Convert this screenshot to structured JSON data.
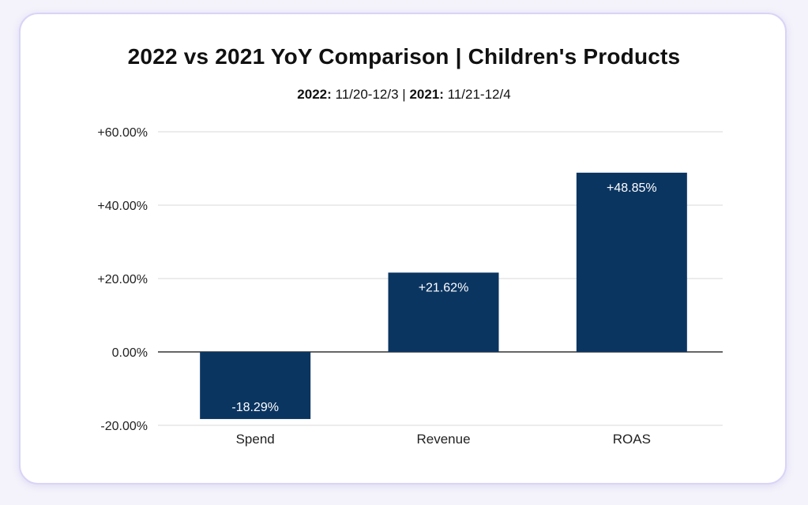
{
  "chart_data": {
    "type": "bar",
    "title": "2022 vs 2021 YoY Comparison | Children's Products",
    "subtitle": {
      "label_2022": "2022:",
      "range_2022": "11/20-12/3",
      "separator": "|",
      "label_2021": "2021:",
      "range_2021": "11/21-12/4"
    },
    "categories": [
      "Spend",
      "Revenue",
      "ROAS"
    ],
    "values": [
      -18.29,
      21.62,
      48.85
    ],
    "data_labels": [
      "-18.29%",
      "+21.62%",
      "+48.85%"
    ],
    "ylim": [
      -20,
      60
    ],
    "yticks": [
      60,
      40,
      20,
      0,
      -20
    ],
    "ytick_labels": [
      "+60.00%",
      "+40.00%",
      "+20.00%",
      "0.00%",
      "-20.00%"
    ],
    "xlabel": "",
    "ylabel": "",
    "grid": true,
    "legend": "none",
    "bar_color": "#0b3561",
    "label_color": "#ffffff",
    "grid_color": "#d9d9d9",
    "axis_color": "#333333"
  }
}
